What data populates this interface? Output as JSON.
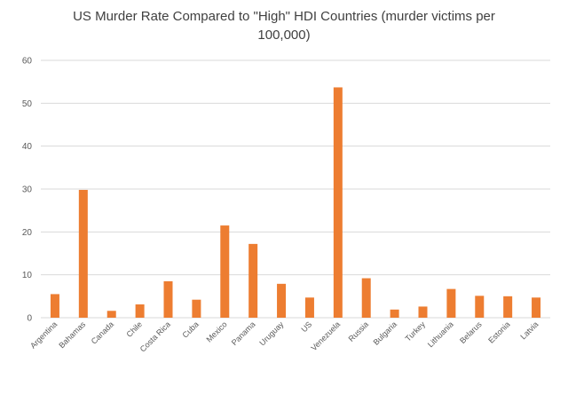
{
  "chart_data": {
    "type": "bar",
    "title": "US Murder Rate Compared to \"High\" HDI Countries (murder victims per 100,000)",
    "xlabel": "",
    "ylabel": "",
    "ylim": [
      0,
      60
    ],
    "yticks": [
      0,
      10,
      20,
      30,
      40,
      50,
      60
    ],
    "grid": true,
    "legend": "none",
    "bar_color": "#ED7D31",
    "grid_color": "#D9D9D9",
    "categories": [
      "Argentina",
      "Bahamas",
      "Canada",
      "Chile",
      "Costa Rica",
      "Cuba",
      "Mexico",
      "Panama",
      "Uruguay",
      "US",
      "Venezuela",
      "Russia",
      "Bulgaria",
      "Turkey",
      "Lithuania",
      "Belarus",
      "Estonia",
      "Latvia"
    ],
    "values": [
      5.5,
      29.8,
      1.6,
      3.1,
      8.5,
      4.2,
      21.5,
      17.2,
      7.9,
      4.7,
      53.7,
      9.2,
      1.9,
      2.6,
      6.7,
      5.1,
      5.0,
      4.7
    ]
  }
}
